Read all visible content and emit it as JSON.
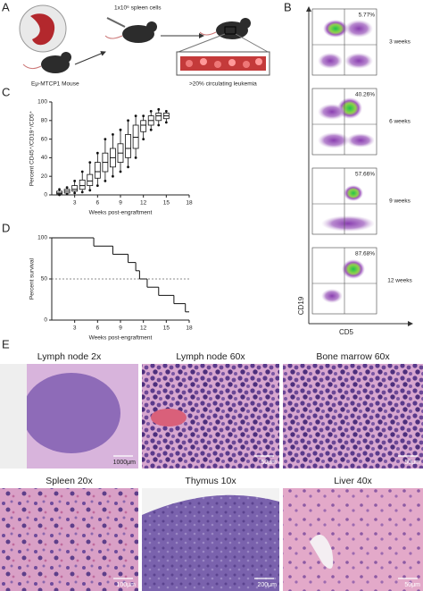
{
  "panel_a": {
    "label": "A",
    "injection": "1x10⁶ spleen cells",
    "donor": "Eμ-MTCP1 Mouse",
    "result": ">20% circulating leukemia"
  },
  "panel_b": {
    "label": "B",
    "y_axis": "CD19",
    "x_axis": "CD5",
    "plots": [
      {
        "percent": "5.77%",
        "time": "3 weeks"
      },
      {
        "percent": "40.26%",
        "time": "6 weeks"
      },
      {
        "percent": "57.66%",
        "time": "9 weeks"
      },
      {
        "percent": "87.68%",
        "time": "12 weeks"
      }
    ]
  },
  "chart_data": [
    {
      "type": "box",
      "panel_label": "C",
      "xlabel": "Weeks post-engraftment",
      "ylabel": "Percent CD45⁺/CD19⁺/CD5⁺",
      "x": [
        1,
        2,
        3,
        4,
        5,
        6,
        7,
        8,
        9,
        10,
        11,
        12,
        13,
        14,
        15
      ],
      "min": [
        0,
        1,
        2,
        3,
        5,
        10,
        15,
        20,
        25,
        30,
        40,
        60,
        70,
        75,
        78
      ],
      "q1": [
        1,
        2,
        4,
        6,
        10,
        18,
        25,
        30,
        35,
        40,
        50,
        68,
        75,
        80,
        82
      ],
      "median": [
        2,
        4,
        6,
        10,
        15,
        25,
        35,
        40,
        45,
        50,
        62,
        75,
        80,
        85,
        85
      ],
      "q3": [
        4,
        6,
        10,
        16,
        22,
        35,
        45,
        50,
        55,
        65,
        75,
        80,
        85,
        88,
        88
      ],
      "max": [
        6,
        8,
        15,
        25,
        35,
        45,
        60,
        65,
        70,
        80,
        85,
        85,
        90,
        92,
        90
      ],
      "xlim": [
        0,
        18
      ],
      "xticks": [
        3,
        6,
        9,
        12,
        15,
        18
      ],
      "ylim": [
        0,
        100
      ],
      "yticks": [
        0,
        20,
        40,
        60,
        80,
        100
      ],
      "color": "#111111"
    },
    {
      "type": "step",
      "panel_label": "D",
      "xlabel": "Weeks post-engraftment",
      "ylabel": "Percent survival",
      "x": [
        0,
        5.5,
        8,
        10,
        11,
        11.5,
        12.5,
        14,
        16,
        17.5
      ],
      "values": [
        100,
        90,
        80,
        70,
        60,
        50,
        40,
        30,
        20,
        10
      ],
      "reference_line": 50,
      "xlim": [
        0,
        18
      ],
      "xticks": [
        3,
        6,
        9,
        12,
        15,
        18
      ],
      "ylim": [
        0,
        100
      ],
      "yticks": [
        0,
        50,
        100
      ],
      "color": "#111111"
    }
  ],
  "panel_e": {
    "label": "E",
    "images": [
      {
        "title": "Lymph node 2x",
        "scale_bar": "1000μm"
      },
      {
        "title": "Lymph node 60x",
        "scale_bar": "50μm"
      },
      {
        "title": "Bone marrow 60x",
        "scale_bar": "50μm"
      },
      {
        "title": "Spleen 20x",
        "scale_bar": "100μm"
      },
      {
        "title": "Thymus 10x",
        "scale_bar": "200μm"
      },
      {
        "title": "Liver 40x",
        "scale_bar": "50μm"
      }
    ]
  }
}
